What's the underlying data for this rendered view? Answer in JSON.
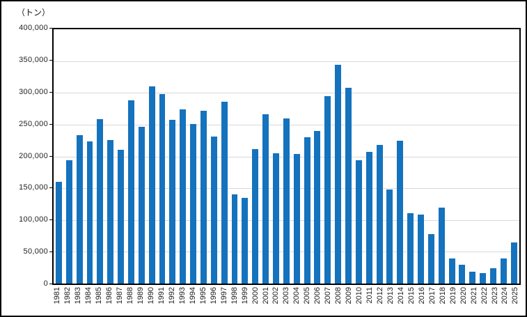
{
  "chart_data": {
    "type": "bar",
    "title": "",
    "unit_label": "（トン）",
    "xlabel": "",
    "ylabel": "トン",
    "ylim": [
      0,
      400000
    ],
    "ytick_interval": 50000,
    "yticks": [
      0,
      50000,
      100000,
      150000,
      200000,
      250000,
      300000,
      350000,
      400000
    ],
    "ytick_labels": [
      "0",
      "50,000",
      "100,000",
      "150,000",
      "200,000",
      "250,000",
      "300,000",
      "350,000",
      "400,000"
    ],
    "grid": "horizontal",
    "legend_position": "none",
    "categories": [
      "1981",
      "1982",
      "1983",
      "1984",
      "1985",
      "1986",
      "1987",
      "1988",
      "1989",
      "1990",
      "1991",
      "1992",
      "1993",
      "1994",
      "1995",
      "1996",
      "1997",
      "1998",
      "1999",
      "2000",
      "2001",
      "2002",
      "2003",
      "2004",
      "2005",
      "2006",
      "2007",
      "2008",
      "2009",
      "2010",
      "2011",
      "2012",
      "2013",
      "2014",
      "2015",
      "2016",
      "2017",
      "2018",
      "2019",
      "2020",
      "2021",
      "2022",
      "2023",
      "2024",
      "2025"
    ],
    "values": [
      160000,
      194000,
      233000,
      224000,
      259000,
      226000,
      210000,
      288000,
      247000,
      310000,
      298000,
      258000,
      274000,
      251000,
      272000,
      231000,
      286000,
      140000,
      135000,
      212000,
      266000,
      205000,
      260000,
      204000,
      230000,
      240000,
      295000,
      344000,
      308000,
      194000,
      207000,
      218000,
      148000,
      225000,
      111000,
      109000,
      78000,
      120000,
      40000,
      30000,
      19000,
      17000,
      24000,
      39000,
      65000
    ],
    "colors": {
      "bar": "#1572BD",
      "gridline": "#D9D9D9",
      "axis": "#000000",
      "background": "#FFFFFF"
    }
  }
}
